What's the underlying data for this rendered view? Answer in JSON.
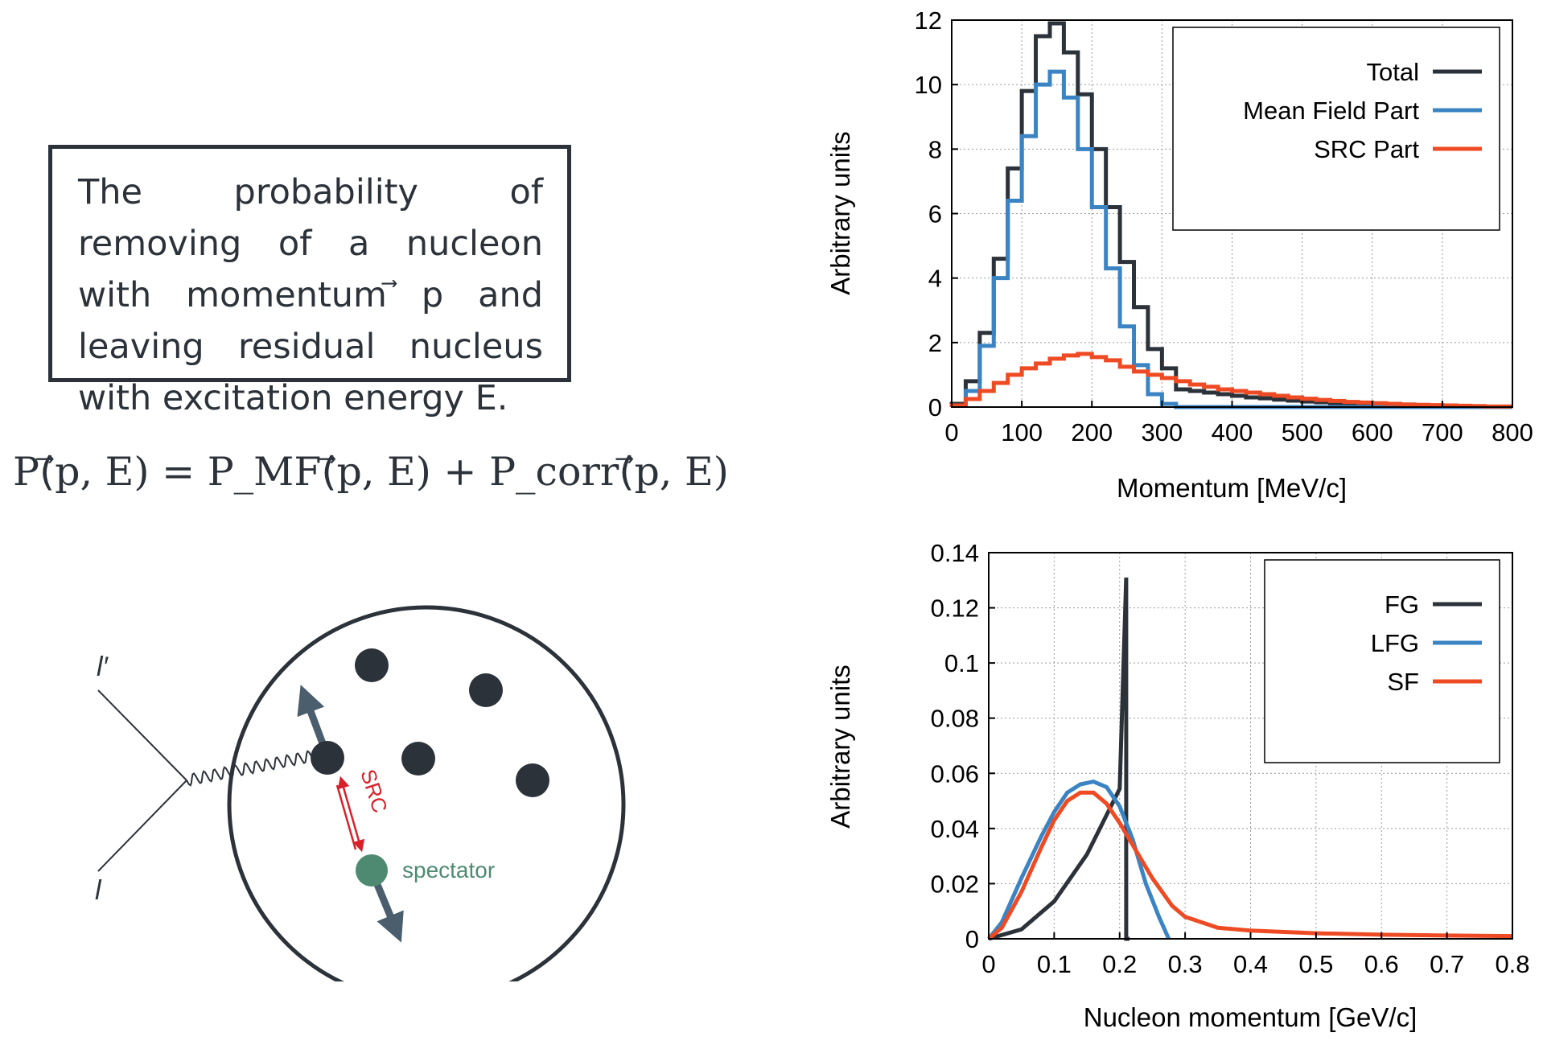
{
  "description_box": {
    "text": "The probability of removing of a nucleon with momentum ⃗p and leaving residual nucleus with excitation energy E."
  },
  "formula": "P(⃗p, E) = P_MF(⃗p, E) + P_corr(⃗p, E)",
  "diagram": {
    "lepton_out_label": "l′",
    "lepton_in_label": "l",
    "src_label": "SRC",
    "spectator_label": "spectator"
  },
  "colors": {
    "dark": "#2c323a",
    "blue": "#3a84c4",
    "orange": "#ee4b24",
    "spectator_green": "#4e8a71",
    "src_red": "#d8202a",
    "arrow_slate": "#4b5e6d"
  },
  "chart_data": [
    {
      "type": "line",
      "style": "histogram-step",
      "xlabel": "Momentum [MeV/c]",
      "ylabel": "Arbitrary units",
      "xlim": [
        0,
        800
      ],
      "ylim": [
        0,
        12
      ],
      "xticks": [
        "0",
        "100",
        "200",
        "300",
        "400",
        "500",
        "600",
        "700",
        "800"
      ],
      "yticks": [
        "0",
        "2",
        "4",
        "6",
        "8",
        "10",
        "12"
      ],
      "grid": true,
      "legend_position": "top-right",
      "bin_width": 20,
      "x": [
        0,
        20,
        40,
        60,
        80,
        100,
        120,
        140,
        160,
        180,
        200,
        220,
        240,
        260,
        280,
        300,
        320,
        340,
        360,
        380,
        400,
        420,
        440,
        460,
        480,
        500,
        520,
        540,
        560,
        580,
        600,
        620,
        640,
        660,
        680,
        700,
        720,
        740,
        760,
        780
      ],
      "series": [
        {
          "name": "Total",
          "color": "#2c323a",
          "values": [
            0.1,
            0.8,
            2.3,
            4.6,
            7.4,
            9.8,
            11.5,
            11.9,
            11.0,
            9.7,
            8.0,
            6.2,
            4.5,
            3.1,
            1.8,
            1.2,
            0.55,
            0.5,
            0.45,
            0.4,
            0.35,
            0.3,
            0.27,
            0.23,
            0.2,
            0.17,
            0.15,
            0.12,
            0.1,
            0.08,
            0.06,
            0.05,
            0.04,
            0.03,
            0.02,
            0.01,
            0.01,
            0.0,
            0.0,
            0.0
          ]
        },
        {
          "name": "Mean Field Part",
          "color": "#3a84c4",
          "values": [
            0.05,
            0.5,
            1.9,
            4.0,
            6.4,
            8.4,
            10.0,
            10.4,
            9.6,
            8.0,
            6.2,
            4.3,
            2.5,
            1.3,
            0.4,
            0.1,
            0.0,
            0.0,
            0.0,
            0.0,
            0.0,
            0.0,
            0.0,
            0.0,
            0.0,
            0.0,
            0.0,
            0.0,
            0.0,
            0.0,
            0.0,
            0.0,
            0.0,
            0.0,
            0.0,
            0.0,
            0.0,
            0.0,
            0.0,
            0.0
          ]
        },
        {
          "name": "SRC Part",
          "color": "#ee4b24",
          "values": [
            0.05,
            0.25,
            0.5,
            0.75,
            1.0,
            1.2,
            1.35,
            1.5,
            1.6,
            1.65,
            1.55,
            1.45,
            1.25,
            1.1,
            1.0,
            0.9,
            0.8,
            0.7,
            0.63,
            0.55,
            0.5,
            0.45,
            0.4,
            0.35,
            0.3,
            0.26,
            0.22,
            0.19,
            0.16,
            0.14,
            0.12,
            0.1,
            0.08,
            0.07,
            0.06,
            0.05,
            0.04,
            0.03,
            0.02,
            0.02
          ]
        }
      ]
    },
    {
      "type": "line",
      "xlabel": "Nucleon momentum [GeV/c]",
      "ylabel": "Arbitrary units",
      "xlim": [
        0,
        0.8
      ],
      "ylim": [
        0,
        0.14
      ],
      "xticks": [
        "0",
        "0.1",
        "0.2",
        "0.3",
        "0.4",
        "0.5",
        "0.6",
        "0.7",
        "0.8"
      ],
      "yticks": [
        "0",
        "0.02",
        "0.04",
        "0.06",
        "0.08",
        "0.1",
        "0.12",
        "0.14"
      ],
      "grid": true,
      "legend_position": "top-right",
      "series": [
        {
          "name": "FG",
          "color": "#2c323a",
          "x": [
            0,
            0.05,
            0.1,
            0.15,
            0.2,
            0.21,
            0.21,
            0.215
          ],
          "y": [
            0,
            0.0034,
            0.0136,
            0.0306,
            0.0544,
            0.131,
            0,
            0
          ]
        },
        {
          "name": "LFG",
          "color": "#3a84c4",
          "x": [
            0,
            0.02,
            0.05,
            0.08,
            0.1,
            0.12,
            0.14,
            0.16,
            0.18,
            0.2,
            0.22,
            0.24,
            0.26,
            0.275
          ],
          "y": [
            0,
            0.006,
            0.022,
            0.037,
            0.046,
            0.053,
            0.056,
            0.057,
            0.055,
            0.048,
            0.036,
            0.02,
            0.008,
            0
          ]
        },
        {
          "name": "SF",
          "color": "#ee4b24",
          "x": [
            0,
            0.02,
            0.05,
            0.08,
            0.1,
            0.12,
            0.14,
            0.16,
            0.18,
            0.2,
            0.22,
            0.25,
            0.28,
            0.3,
            0.35,
            0.4,
            0.5,
            0.6,
            0.7,
            0.8
          ],
          "y": [
            0,
            0.004,
            0.017,
            0.033,
            0.043,
            0.05,
            0.053,
            0.053,
            0.049,
            0.042,
            0.034,
            0.022,
            0.012,
            0.008,
            0.004,
            0.003,
            0.002,
            0.0015,
            0.0012,
            0.001
          ]
        }
      ]
    }
  ]
}
